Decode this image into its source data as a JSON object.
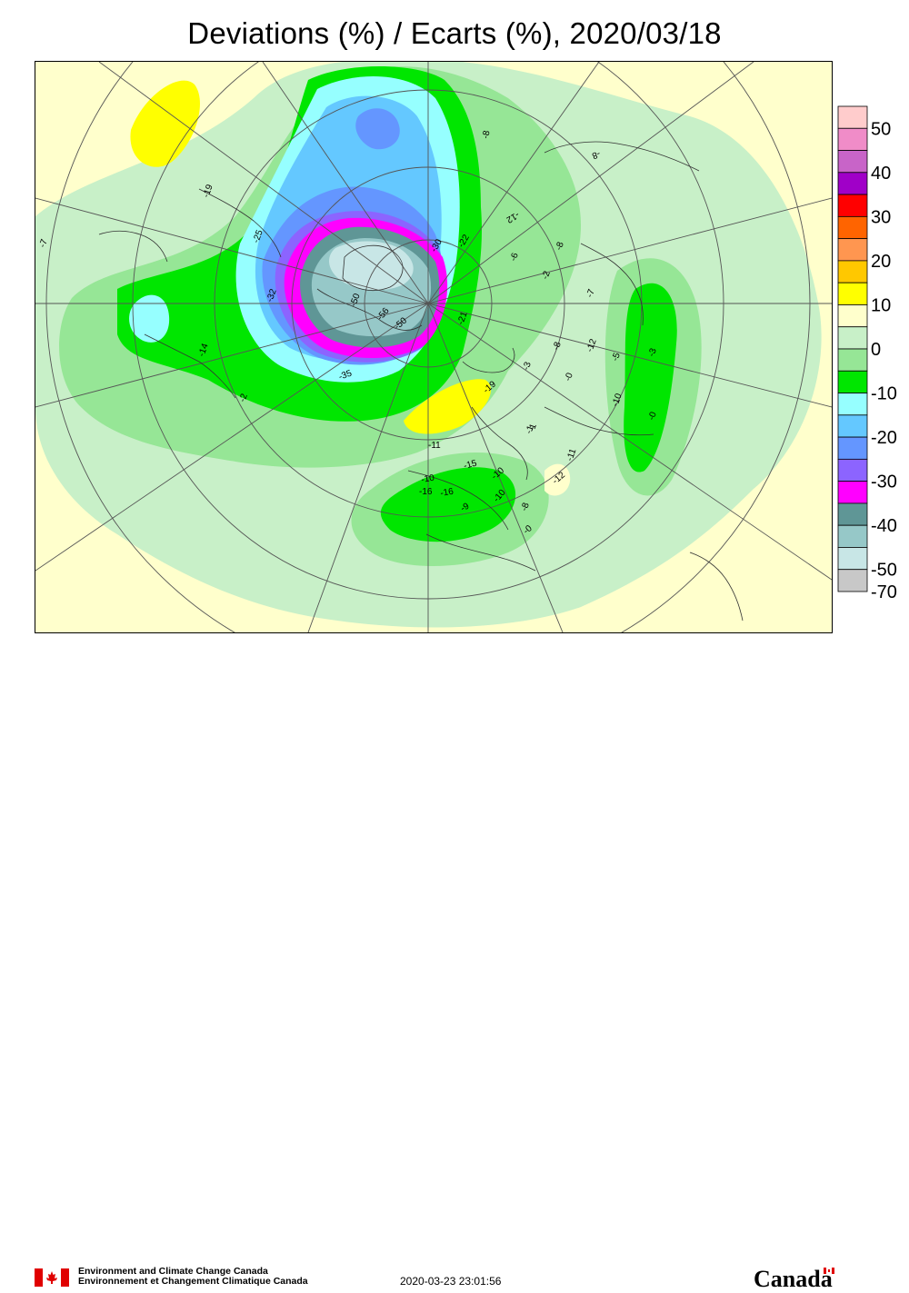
{
  "title": "Deviations (%) / Ecarts (%), 2020/03/18",
  "legend": {
    "colors": [
      "#ffcccc",
      "#f08cc8",
      "#c864c8",
      "#a000c8",
      "#ff0000",
      "#ff6400",
      "#ff9650",
      "#ffc800",
      "#ffff00",
      "#ffffcc",
      "#c8f0c8",
      "#96e696",
      "#00e600",
      "#96ffff",
      "#64c8ff",
      "#6496ff",
      "#8c64ff",
      "#ff00ff",
      "#5f9696",
      "#96c8c8",
      "#c8e6e6",
      "#c8c8c8"
    ],
    "labels": [
      "50",
      "40",
      "30",
      "20",
      "10",
      "0",
      "-10",
      "-20",
      "-30",
      "-40",
      "-50",
      "-70"
    ]
  },
  "contour_labels": [
    "-7",
    "-19",
    "-25",
    "-32",
    "-50",
    "-56",
    "-50",
    "-30",
    "-22",
    "-14",
    "-35",
    "-21",
    "-12",
    "-8",
    "-6",
    "-2",
    "-3",
    "-1",
    "-8",
    "-7",
    "-8",
    "-12",
    "-5",
    "-3",
    "-0",
    "-10",
    "-19",
    "-1",
    "-11",
    "-15",
    "-10",
    "-16",
    "-16",
    "-10",
    "-9",
    "-10",
    "-8",
    "-0",
    "-12",
    "-11",
    "-2",
    "-0",
    "-8"
  ],
  "footer": {
    "dept_en": "Environment and Climate Change Canada",
    "dept_fr": "Environnement et Changement Climatique Canada",
    "timestamp": "2020-03-23 23:01:56",
    "wordmark": "Canada"
  }
}
